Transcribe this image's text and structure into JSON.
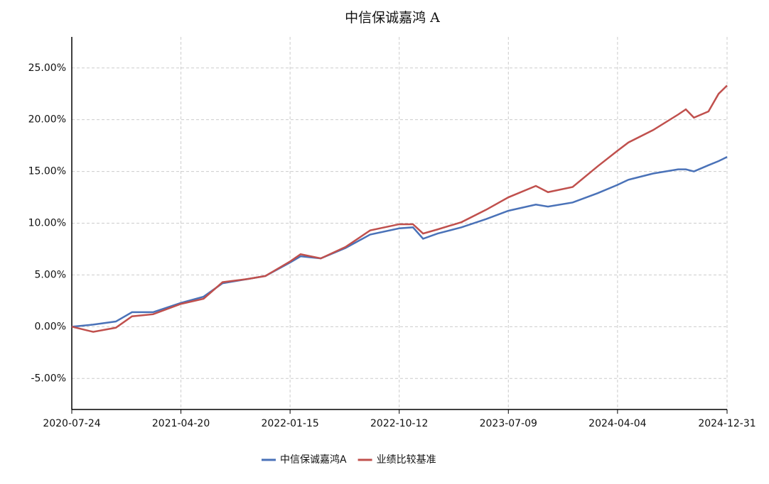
{
  "chart_data": {
    "type": "line",
    "title": "中信保诚嘉鸿 A",
    "x": [
      "2020-07-24",
      "2020-09-15",
      "2020-11-10",
      "2020-12-20",
      "2021-02-10",
      "2021-04-20",
      "2021-06-15",
      "2021-08-01",
      "2021-10-01",
      "2021-11-15",
      "2022-01-15",
      "2022-02-10",
      "2022-04-01",
      "2022-06-01",
      "2022-08-01",
      "2022-10-12",
      "2022-11-15",
      "2022-12-10",
      "2023-01-15",
      "2023-03-15",
      "2023-05-15",
      "2023-07-09",
      "2023-09-15",
      "2023-10-15",
      "2023-12-15",
      "2024-02-15",
      "2024-04-04",
      "2024-05-01",
      "2024-07-01",
      "2024-09-01",
      "2024-09-20",
      "2024-10-10",
      "2024-11-15",
      "2024-12-10",
      "2024-12-31"
    ],
    "series": [
      {
        "name": "中信保诚嘉鸿A",
        "color": "#4a72b8",
        "values": [
          0.0,
          0.2,
          0.5,
          1.4,
          1.4,
          2.3,
          2.9,
          4.2,
          4.6,
          4.9,
          6.2,
          6.8,
          6.6,
          7.6,
          8.9,
          9.5,
          9.6,
          8.5,
          9.0,
          9.6,
          10.4,
          11.2,
          11.8,
          11.6,
          12.0,
          12.9,
          13.7,
          14.2,
          14.8,
          15.2,
          15.2,
          15.0,
          15.6,
          16.0,
          16.4
        ]
      },
      {
        "name": "业绩比较基准",
        "color": "#c0504d",
        "values": [
          0.0,
          -0.5,
          -0.1,
          1.0,
          1.2,
          2.2,
          2.7,
          4.3,
          4.6,
          4.9,
          6.3,
          7.0,
          6.6,
          7.7,
          9.3,
          9.9,
          9.9,
          9.0,
          9.4,
          10.1,
          11.3,
          12.5,
          13.6,
          13.0,
          13.5,
          15.5,
          17.0,
          17.8,
          19.0,
          20.5,
          21.0,
          20.2,
          20.8,
          22.5,
          23.3
        ]
      }
    ],
    "xlim": [
      "2020-07-24",
      "2024-12-31"
    ],
    "xticks": [
      "2020-07-24",
      "2021-04-20",
      "2022-01-15",
      "2022-10-12",
      "2023-07-09",
      "2024-04-04",
      "2024-12-31"
    ],
    "ylim": [
      -8,
      28
    ],
    "yticks": [
      {
        "value": -5,
        "label": "-5.00%"
      },
      {
        "value": 0,
        "label": "0.00%"
      },
      {
        "value": 5,
        "label": "5.00%"
      },
      {
        "value": 10,
        "label": "10.00%"
      },
      {
        "value": 15,
        "label": "15.00%"
      },
      {
        "value": 20,
        "label": "20.00%"
      },
      {
        "value": 25,
        "label": "25.00%"
      }
    ],
    "grid": true,
    "legend": "bottom"
  }
}
